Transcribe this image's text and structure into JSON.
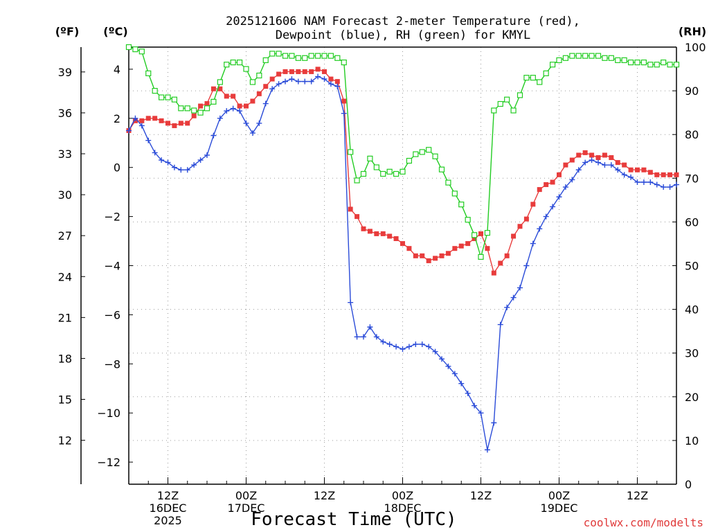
{
  "chart_data": {
    "type": "line",
    "title_lines": [
      "2025121606 NAM Forecast 2-meter Temperature (red),",
      "Dewpoint (blue), RH (green) for KMYL"
    ],
    "xlabel": "Forecast Time (UTC)",
    "credit": "coolwx.com/modelts",
    "left_axis_f": {
      "unit_label": "(ºF)",
      "ticks": [
        12,
        15,
        18,
        21,
        24,
        27,
        30,
        33,
        36,
        39
      ]
    },
    "left_axis_c": {
      "unit_label": "(ºC)",
      "ylim": [
        -12.9,
        4.9
      ],
      "ticks": [
        -12,
        -10,
        -8,
        -6,
        -4,
        -2,
        0,
        2,
        4
      ]
    },
    "right_axis_rh": {
      "unit_label": "(RH)",
      "ylim": [
        0,
        100
      ],
      "ticks": [
        0,
        10,
        20,
        30,
        40,
        50,
        60,
        70,
        80,
        90,
        100
      ]
    },
    "x_axis": {
      "unit": "forecast hour",
      "xlim": [
        0,
        84
      ],
      "gridlines_hours": [
        6,
        18,
        30,
        42,
        54,
        66,
        78
      ],
      "tick_labels": [
        {
          "hour": 6,
          "lines": [
            "12Z",
            "16DEC",
            "2025"
          ]
        },
        {
          "hour": 18,
          "lines": [
            "00Z",
            "17DEC"
          ]
        },
        {
          "hour": 30,
          "lines": [
            "12Z"
          ]
        },
        {
          "hour": 42,
          "lines": [
            "00Z",
            "18DEC"
          ]
        },
        {
          "hour": 54,
          "lines": [
            "12Z"
          ]
        },
        {
          "hour": 66,
          "lines": [
            "00Z",
            "19DEC"
          ]
        },
        {
          "hour": 78,
          "lines": [
            "12Z"
          ]
        }
      ]
    },
    "grid": true,
    "colors": {
      "temperature": "#e83c3c",
      "dewpoint": "#2a4bd8",
      "rh": "#22cc22"
    },
    "series": [
      {
        "name": "Temperature",
        "axis": "celsius",
        "color": "#e83c3c",
        "marker": "filled-square",
        "points": [
          [
            0,
            1.5
          ],
          [
            1,
            1.9
          ],
          [
            2,
            1.9
          ],
          [
            3,
            2.0
          ],
          [
            4,
            2.0
          ],
          [
            5,
            1.9
          ],
          [
            6,
            1.8
          ],
          [
            7,
            1.7
          ],
          [
            8,
            1.8
          ],
          [
            9,
            1.8
          ],
          [
            10,
            2.1
          ],
          [
            11,
            2.5
          ],
          [
            12,
            2.6
          ],
          [
            13,
            3.2
          ],
          [
            14,
            3.2
          ],
          [
            15,
            2.9
          ],
          [
            16,
            2.9
          ],
          [
            17,
            2.5
          ],
          [
            18,
            2.5
          ],
          [
            19,
            2.7
          ],
          [
            20,
            3.0
          ],
          [
            21,
            3.3
          ],
          [
            22,
            3.6
          ],
          [
            23,
            3.8
          ],
          [
            24,
            3.9
          ],
          [
            25,
            3.9
          ],
          [
            26,
            3.9
          ],
          [
            27,
            3.9
          ],
          [
            28,
            3.9
          ],
          [
            29,
            4.0
          ],
          [
            30,
            3.9
          ],
          [
            31,
            3.6
          ],
          [
            32,
            3.5
          ],
          [
            33,
            2.7
          ],
          [
            34,
            -1.7
          ],
          [
            35,
            -2.0
          ],
          [
            36,
            -2.5
          ],
          [
            37,
            -2.6
          ],
          [
            38,
            -2.7
          ],
          [
            39,
            -2.7
          ],
          [
            40,
            -2.8
          ],
          [
            41,
            -2.9
          ],
          [
            42,
            -3.1
          ],
          [
            43,
            -3.3
          ],
          [
            44,
            -3.6
          ],
          [
            45,
            -3.6
          ],
          [
            46,
            -3.8
          ],
          [
            47,
            -3.7
          ],
          [
            48,
            -3.6
          ],
          [
            49,
            -3.5
          ],
          [
            50,
            -3.3
          ],
          [
            51,
            -3.2
          ],
          [
            52,
            -3.1
          ],
          [
            53,
            -2.9
          ],
          [
            54,
            -2.7
          ],
          [
            55,
            -3.3
          ],
          [
            56,
            -4.3
          ],
          [
            57,
            -3.9
          ],
          [
            58,
            -3.6
          ],
          [
            59,
            -2.8
          ],
          [
            60,
            -2.4
          ],
          [
            61,
            -2.1
          ],
          [
            62,
            -1.5
          ],
          [
            63,
            -0.9
          ],
          [
            64,
            -0.7
          ],
          [
            65,
            -0.6
          ],
          [
            66,
            -0.3
          ],
          [
            67,
            0.1
          ],
          [
            68,
            0.3
          ],
          [
            69,
            0.5
          ],
          [
            70,
            0.6
          ],
          [
            71,
            0.5
          ],
          [
            72,
            0.4
          ],
          [
            73,
            0.5
          ],
          [
            74,
            0.4
          ],
          [
            75,
            0.2
          ],
          [
            76,
            0.1
          ],
          [
            77,
            -0.1
          ],
          [
            78,
            -0.1
          ],
          [
            79,
            -0.1
          ],
          [
            80,
            -0.2
          ],
          [
            81,
            -0.3
          ],
          [
            82,
            -0.3
          ],
          [
            83,
            -0.3
          ],
          [
            84,
            -0.3
          ]
        ]
      },
      {
        "name": "Dewpoint",
        "axis": "celsius",
        "color": "#2a4bd8",
        "marker": "plus",
        "points": [
          [
            0,
            1.5
          ],
          [
            1,
            2.0
          ],
          [
            2,
            1.7
          ],
          [
            3,
            1.1
          ],
          [
            4,
            0.6
          ],
          [
            5,
            0.3
          ],
          [
            6,
            0.2
          ],
          [
            7,
            0.0
          ],
          [
            8,
            -0.1
          ],
          [
            9,
            -0.1
          ],
          [
            10,
            0.1
          ],
          [
            11,
            0.3
          ],
          [
            12,
            0.5
          ],
          [
            13,
            1.3
          ],
          [
            14,
            2.0
          ],
          [
            15,
            2.3
          ],
          [
            16,
            2.4
          ],
          [
            17,
            2.3
          ],
          [
            18,
            1.8
          ],
          [
            19,
            1.4
          ],
          [
            20,
            1.8
          ],
          [
            21,
            2.6
          ],
          [
            22,
            3.2
          ],
          [
            23,
            3.4
          ],
          [
            24,
            3.5
          ],
          [
            25,
            3.6
          ],
          [
            26,
            3.5
          ],
          [
            27,
            3.5
          ],
          [
            28,
            3.5
          ],
          [
            29,
            3.7
          ],
          [
            30,
            3.6
          ],
          [
            31,
            3.4
          ],
          [
            32,
            3.3
          ],
          [
            33,
            2.2
          ],
          [
            34,
            -5.5
          ],
          [
            35,
            -6.9
          ],
          [
            36,
            -6.9
          ],
          [
            37,
            -6.5
          ],
          [
            38,
            -6.9
          ],
          [
            39,
            -7.1
          ],
          [
            40,
            -7.2
          ],
          [
            41,
            -7.3
          ],
          [
            42,
            -7.4
          ],
          [
            43,
            -7.3
          ],
          [
            44,
            -7.2
          ],
          [
            45,
            -7.2
          ],
          [
            46,
            -7.3
          ],
          [
            47,
            -7.5
          ],
          [
            48,
            -7.8
          ],
          [
            49,
            -8.1
          ],
          [
            50,
            -8.4
          ],
          [
            51,
            -8.8
          ],
          [
            52,
            -9.2
          ],
          [
            53,
            -9.7
          ],
          [
            54,
            -10.0
          ],
          [
            55,
            -11.5
          ],
          [
            56,
            -10.4
          ],
          [
            57,
            -6.4
          ],
          [
            58,
            -5.7
          ],
          [
            59,
            -5.3
          ],
          [
            60,
            -4.9
          ],
          [
            61,
            -4.0
          ],
          [
            62,
            -3.1
          ],
          [
            63,
            -2.5
          ],
          [
            64,
            -2.0
          ],
          [
            65,
            -1.6
          ],
          [
            66,
            -1.2
          ],
          [
            67,
            -0.8
          ],
          [
            68,
            -0.5
          ],
          [
            69,
            -0.1
          ],
          [
            70,
            0.2
          ],
          [
            71,
            0.3
          ],
          [
            72,
            0.2
          ],
          [
            73,
            0.1
          ],
          [
            74,
            0.1
          ],
          [
            75,
            -0.1
          ],
          [
            76,
            -0.3
          ],
          [
            77,
            -0.4
          ],
          [
            78,
            -0.6
          ],
          [
            79,
            -0.6
          ],
          [
            80,
            -0.6
          ],
          [
            81,
            -0.7
          ],
          [
            82,
            -0.8
          ],
          [
            83,
            -0.8
          ],
          [
            84,
            -0.7
          ]
        ]
      },
      {
        "name": "RH",
        "axis": "rh",
        "color": "#22cc22",
        "marker": "open-square",
        "points": [
          [
            0,
            100
          ],
          [
            1,
            99.5
          ],
          [
            2,
            99
          ],
          [
            3,
            94
          ],
          [
            4,
            90
          ],
          [
            5,
            88.5
          ],
          [
            6,
            88.5
          ],
          [
            7,
            88
          ],
          [
            8,
            86
          ],
          [
            9,
            86
          ],
          [
            10,
            85.5
          ],
          [
            11,
            85
          ],
          [
            12,
            86
          ],
          [
            13,
            87.5
          ],
          [
            14,
            92
          ],
          [
            15,
            96
          ],
          [
            16,
            96.5
          ],
          [
            17,
            96.5
          ],
          [
            18,
            95
          ],
          [
            19,
            92
          ],
          [
            20,
            93.5
          ],
          [
            21,
            97
          ],
          [
            22,
            98.5
          ],
          [
            23,
            98.5
          ],
          [
            24,
            98
          ],
          [
            25,
            98
          ],
          [
            26,
            97.5
          ],
          [
            27,
            97.5
          ],
          [
            28,
            98
          ],
          [
            29,
            98
          ],
          [
            30,
            98
          ],
          [
            31,
            98
          ],
          [
            32,
            97.5
          ],
          [
            33,
            96.5
          ],
          [
            34,
            76
          ],
          [
            35,
            69.5
          ],
          [
            36,
            71
          ],
          [
            37,
            74.5
          ],
          [
            38,
            72.5
          ],
          [
            39,
            71
          ],
          [
            40,
            71.5
          ],
          [
            41,
            71
          ],
          [
            42,
            71.5
          ],
          [
            43,
            74
          ],
          [
            44,
            75.5
          ],
          [
            45,
            76
          ],
          [
            46,
            76.5
          ],
          [
            47,
            75
          ],
          [
            48,
            72
          ],
          [
            49,
            69
          ],
          [
            50,
            66.5
          ],
          [
            51,
            64
          ],
          [
            52,
            60.5
          ],
          [
            53,
            57
          ],
          [
            54,
            52
          ],
          [
            55,
            57.5
          ],
          [
            56,
            85.5
          ],
          [
            57,
            87
          ],
          [
            58,
            88
          ],
          [
            59,
            85.5
          ],
          [
            60,
            89
          ],
          [
            61,
            93
          ],
          [
            62,
            93
          ],
          [
            63,
            92
          ],
          [
            64,
            94
          ],
          [
            65,
            96
          ],
          [
            66,
            97
          ],
          [
            67,
            97.5
          ],
          [
            68,
            98
          ],
          [
            69,
            98
          ],
          [
            70,
            98
          ],
          [
            71,
            98
          ],
          [
            72,
            98
          ],
          [
            73,
            97.5
          ],
          [
            74,
            97.5
          ],
          [
            75,
            97
          ],
          [
            76,
            97
          ],
          [
            77,
            96.5
          ],
          [
            78,
            96.5
          ],
          [
            79,
            96.5
          ],
          [
            80,
            96
          ],
          [
            81,
            96
          ],
          [
            82,
            96.5
          ],
          [
            83,
            96
          ],
          [
            84,
            96
          ]
        ]
      }
    ]
  }
}
